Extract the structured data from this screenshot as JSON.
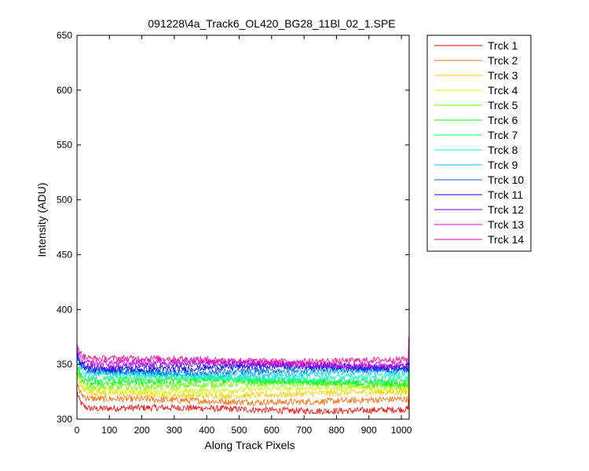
{
  "chart_data": {
    "type": "line",
    "title": "091228\\4a_Track6_OL420_BG28_11Bl_02_1.SPE",
    "xlabel": "Along Track Pixels",
    "ylabel": "Intensity (ADU)",
    "xlim": [
      0,
      1024
    ],
    "ylim": [
      300,
      650
    ],
    "xticks": [
      0,
      100,
      200,
      300,
      400,
      500,
      600,
      700,
      800,
      900,
      1000
    ],
    "yticks": [
      300,
      350,
      400,
      450,
      500,
      550,
      600,
      650
    ],
    "grid": false,
    "legend_position": "outside-right-top",
    "x_range": [
      1,
      1024
    ],
    "series": [
      {
        "name": "Trck 1",
        "color": "#ff0000",
        "level": 309,
        "start": 324,
        "noise": 3
      },
      {
        "name": "Trck 2",
        "color": "#ff6600",
        "level": 317,
        "start": 331,
        "noise": 3
      },
      {
        "name": "Trck 3",
        "color": "#ffcc00",
        "level": 323,
        "start": 337,
        "noise": 3
      },
      {
        "name": "Trck 4",
        "color": "#ccff00",
        "level": 327,
        "start": 341,
        "noise": 3
      },
      {
        "name": "Trck 5",
        "color": "#66ff00",
        "level": 331,
        "start": 345,
        "noise": 3
      },
      {
        "name": "Trck 6",
        "color": "#00ff00",
        "level": 334,
        "start": 348,
        "noise": 3
      },
      {
        "name": "Trck 7",
        "color": "#00ff66",
        "level": 336,
        "start": 350,
        "noise": 3
      },
      {
        "name": "Trck 8",
        "color": "#00ffcc",
        "level": 339,
        "start": 353,
        "noise": 3
      },
      {
        "name": "Trck 9",
        "color": "#00ccff",
        "level": 342,
        "start": 356,
        "noise": 3
      },
      {
        "name": "Trck 10",
        "color": "#0066ff",
        "level": 344,
        "start": 358,
        "noise": 3
      },
      {
        "name": "Trck 11",
        "color": "#0000ff",
        "level": 347,
        "start": 361,
        "noise": 3
      },
      {
        "name": "Trck 12",
        "color": "#6600ff",
        "level": 349,
        "start": 363,
        "noise": 3
      },
      {
        "name": "Trck 13",
        "color": "#cc00ff",
        "level": 351,
        "start": 365,
        "noise": 3
      },
      {
        "name": "Trck 14",
        "color": "#ff0099",
        "level": 354,
        "start": 368,
        "noise": 3
      }
    ]
  }
}
